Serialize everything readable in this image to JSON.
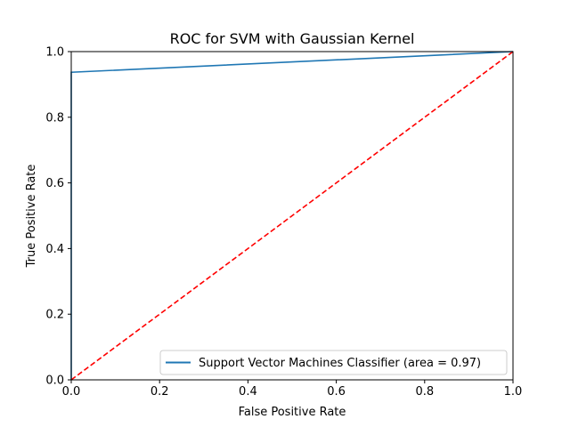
{
  "chart_data": {
    "type": "line",
    "title": "ROC for SVM with Gaussian Kernel",
    "xlabel": "False Positive Rate",
    "ylabel": "True Positive Rate",
    "xlim": [
      0.0,
      1.0
    ],
    "ylim": [
      0.0,
      1.0
    ],
    "xticks": [
      "0.0",
      "0.2",
      "0.4",
      "0.6",
      "0.8",
      "1.0"
    ],
    "yticks": [
      "0.0",
      "0.2",
      "0.4",
      "0.6",
      "0.8",
      "1.0"
    ],
    "grid": false,
    "legend_position": "lower right",
    "series": [
      {
        "name": "Support Vector Machines Classifier (area = 0.97)",
        "x": [
          0.0,
          0.0,
          1.0
        ],
        "y": [
          0.0,
          0.937,
          1.0
        ],
        "color": "#1f77b4",
        "style": "solid"
      },
      {
        "name": "",
        "x": [
          0.0,
          1.0
        ],
        "y": [
          0.0,
          1.0
        ],
        "color": "#ff0000",
        "style": "dashed"
      }
    ]
  }
}
